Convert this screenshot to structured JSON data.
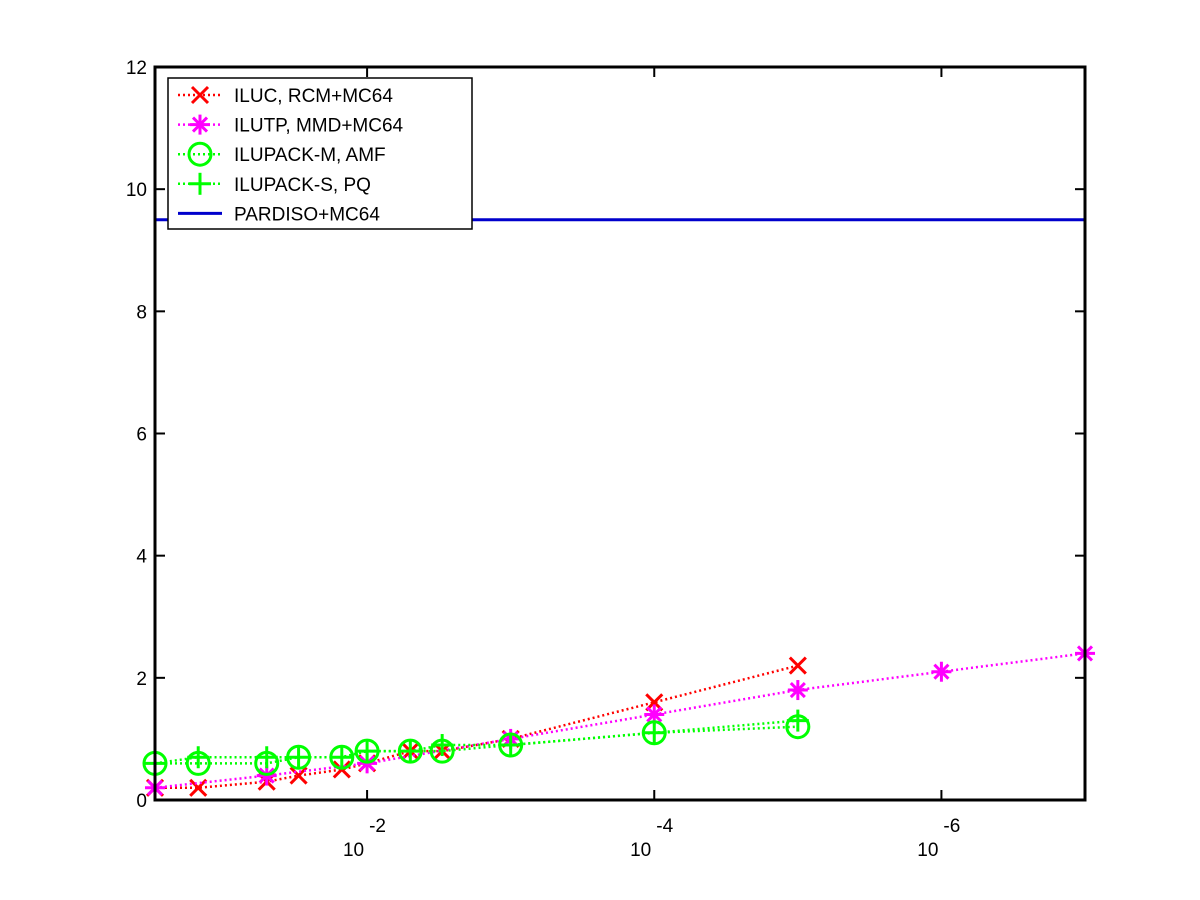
{
  "chart_data": {
    "type": "line",
    "title": "",
    "xlabel": "",
    "ylabel": "",
    "xscale": "log",
    "x_direction": "reversed",
    "xlim": [
      0.3,
      1e-07
    ],
    "ylim": [
      0,
      12
    ],
    "grid": false,
    "legend_position": "top-left",
    "x_ticks": [
      {
        "value": 0.01,
        "base": "10",
        "exponent": "-2"
      },
      {
        "value": 0.0001,
        "base": "10",
        "exponent": "-4"
      },
      {
        "value": 1e-06,
        "base": "10",
        "exponent": "-6"
      }
    ],
    "y_ticks": [
      "0",
      "2",
      "4",
      "6",
      "8",
      "10",
      "12"
    ],
    "series": [
      {
        "name": "ILUC, RCM+MC64",
        "color": "#ff0000",
        "marker": "x",
        "line": "dotted",
        "points": [
          [
            0.3,
            0.2
          ],
          [
            0.15,
            0.2
          ],
          [
            0.05,
            0.3
          ],
          [
            0.03,
            0.4
          ],
          [
            0.015,
            0.5
          ],
          [
            0.01,
            0.6
          ],
          [
            0.005,
            0.8
          ],
          [
            0.003,
            0.8
          ],
          [
            0.001,
            1.0
          ],
          [
            0.0001,
            1.6
          ],
          [
            1e-05,
            2.2
          ]
        ]
      },
      {
        "name": "ILUTP, MMD+MC64",
        "color": "#ff00ff",
        "marker": "asterisk",
        "line": "dotted",
        "points": [
          [
            0.3,
            0.2
          ],
          [
            0.05,
            0.4
          ],
          [
            0.01,
            0.6
          ],
          [
            0.001,
            1.0
          ],
          [
            0.0001,
            1.4
          ],
          [
            1e-05,
            1.8
          ],
          [
            1e-06,
            2.1
          ],
          [
            1e-07,
            2.4
          ]
        ]
      },
      {
        "name": "ILUPACK-M, AMF",
        "color": "#00ff00",
        "marker": "circle",
        "line": "dotted",
        "points": [
          [
            0.3,
            0.6
          ],
          [
            0.15,
            0.6
          ],
          [
            0.05,
            0.6
          ],
          [
            0.03,
            0.7
          ],
          [
            0.015,
            0.7
          ],
          [
            0.01,
            0.8
          ],
          [
            0.005,
            0.8
          ],
          [
            0.003,
            0.8
          ],
          [
            0.001,
            0.9
          ],
          [
            0.0001,
            1.1
          ],
          [
            1e-05,
            1.2
          ]
        ]
      },
      {
        "name": "ILUPACK-S, PQ",
        "color": "#00ff00",
        "marker": "plus",
        "line": "dotted",
        "points": [
          [
            0.3,
            0.6
          ],
          [
            0.15,
            0.7
          ],
          [
            0.05,
            0.7
          ],
          [
            0.03,
            0.7
          ],
          [
            0.015,
            0.7
          ],
          [
            0.01,
            0.8
          ],
          [
            0.005,
            0.8
          ],
          [
            0.003,
            0.9
          ],
          [
            0.001,
            0.9
          ],
          [
            0.0001,
            1.1
          ],
          [
            1e-05,
            1.3
          ]
        ]
      },
      {
        "name": "PARDISO+MC64",
        "color": "#0000cc",
        "marker": "none",
        "line": "solid",
        "points": [
          [
            0.3,
            9.5
          ],
          [
            1e-07,
            9.5
          ]
        ]
      }
    ]
  }
}
